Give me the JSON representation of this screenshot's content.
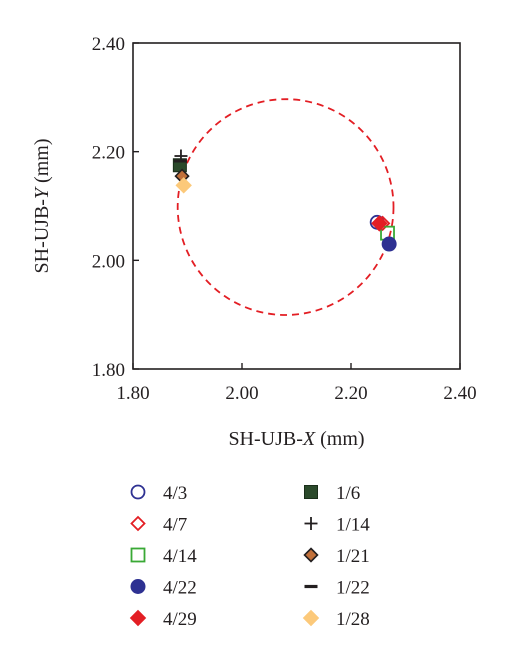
{
  "chart_data": {
    "type": "scatter",
    "xlabel": {
      "prefix": "SH-UJB-",
      "var": "X",
      "suffix": " (mm)"
    },
    "ylabel": {
      "prefix": "SH-UJB-",
      "var": "Y",
      "suffix": " (mm)"
    },
    "xlim": [
      1.8,
      2.4
    ],
    "ylim": [
      1.8,
      2.4
    ],
    "x_ticks": [
      "1.80",
      "2.00",
      "2.20",
      "2.40"
    ],
    "y_ticks": [
      "1.80",
      "2.00",
      "2.20",
      "2.40"
    ],
    "grid": false,
    "legend_position": "bottom",
    "fitted_circle": {
      "cx": 2.08,
      "cy": 2.098,
      "r": 0.198,
      "color": "#e31e24",
      "style": "dashed"
    },
    "series": [
      {
        "name": "4/3",
        "marker": "circle-open",
        "color": "#2e3192",
        "x": 2.248,
        "y": 2.07
      },
      {
        "name": "4/7",
        "marker": "diamond-open",
        "color": "#e31e24",
        "x": 2.258,
        "y": 2.068
      },
      {
        "name": "4/14",
        "marker": "square-open",
        "color": "#39a935",
        "x": 2.267,
        "y": 2.05
      },
      {
        "name": "4/22",
        "marker": "circle-filled",
        "color": "#2e3192",
        "x": 2.27,
        "y": 2.03
      },
      {
        "name": "4/29",
        "marker": "diamond-filled",
        "color": "#e31e24",
        "x": 2.252,
        "y": 2.068
      },
      {
        "name": "1/6",
        "marker": "square-filled",
        "color": "#2b4a2b",
        "x": 1.886,
        "y": 2.175
      },
      {
        "name": "1/14",
        "marker": "plus",
        "color": "#231f20",
        "x": 1.888,
        "y": 2.192
      },
      {
        "name": "1/21",
        "marker": "diamond-brown",
        "color": "#c1703a",
        "x": 1.89,
        "y": 2.155
      },
      {
        "name": "1/22",
        "marker": "dash",
        "color": "#231f20",
        "x": 1.887,
        "y": 2.183
      },
      {
        "name": "1/28",
        "marker": "diamond-filled",
        "color": "#fcc97a",
        "x": 1.893,
        "y": 2.138
      }
    ]
  }
}
